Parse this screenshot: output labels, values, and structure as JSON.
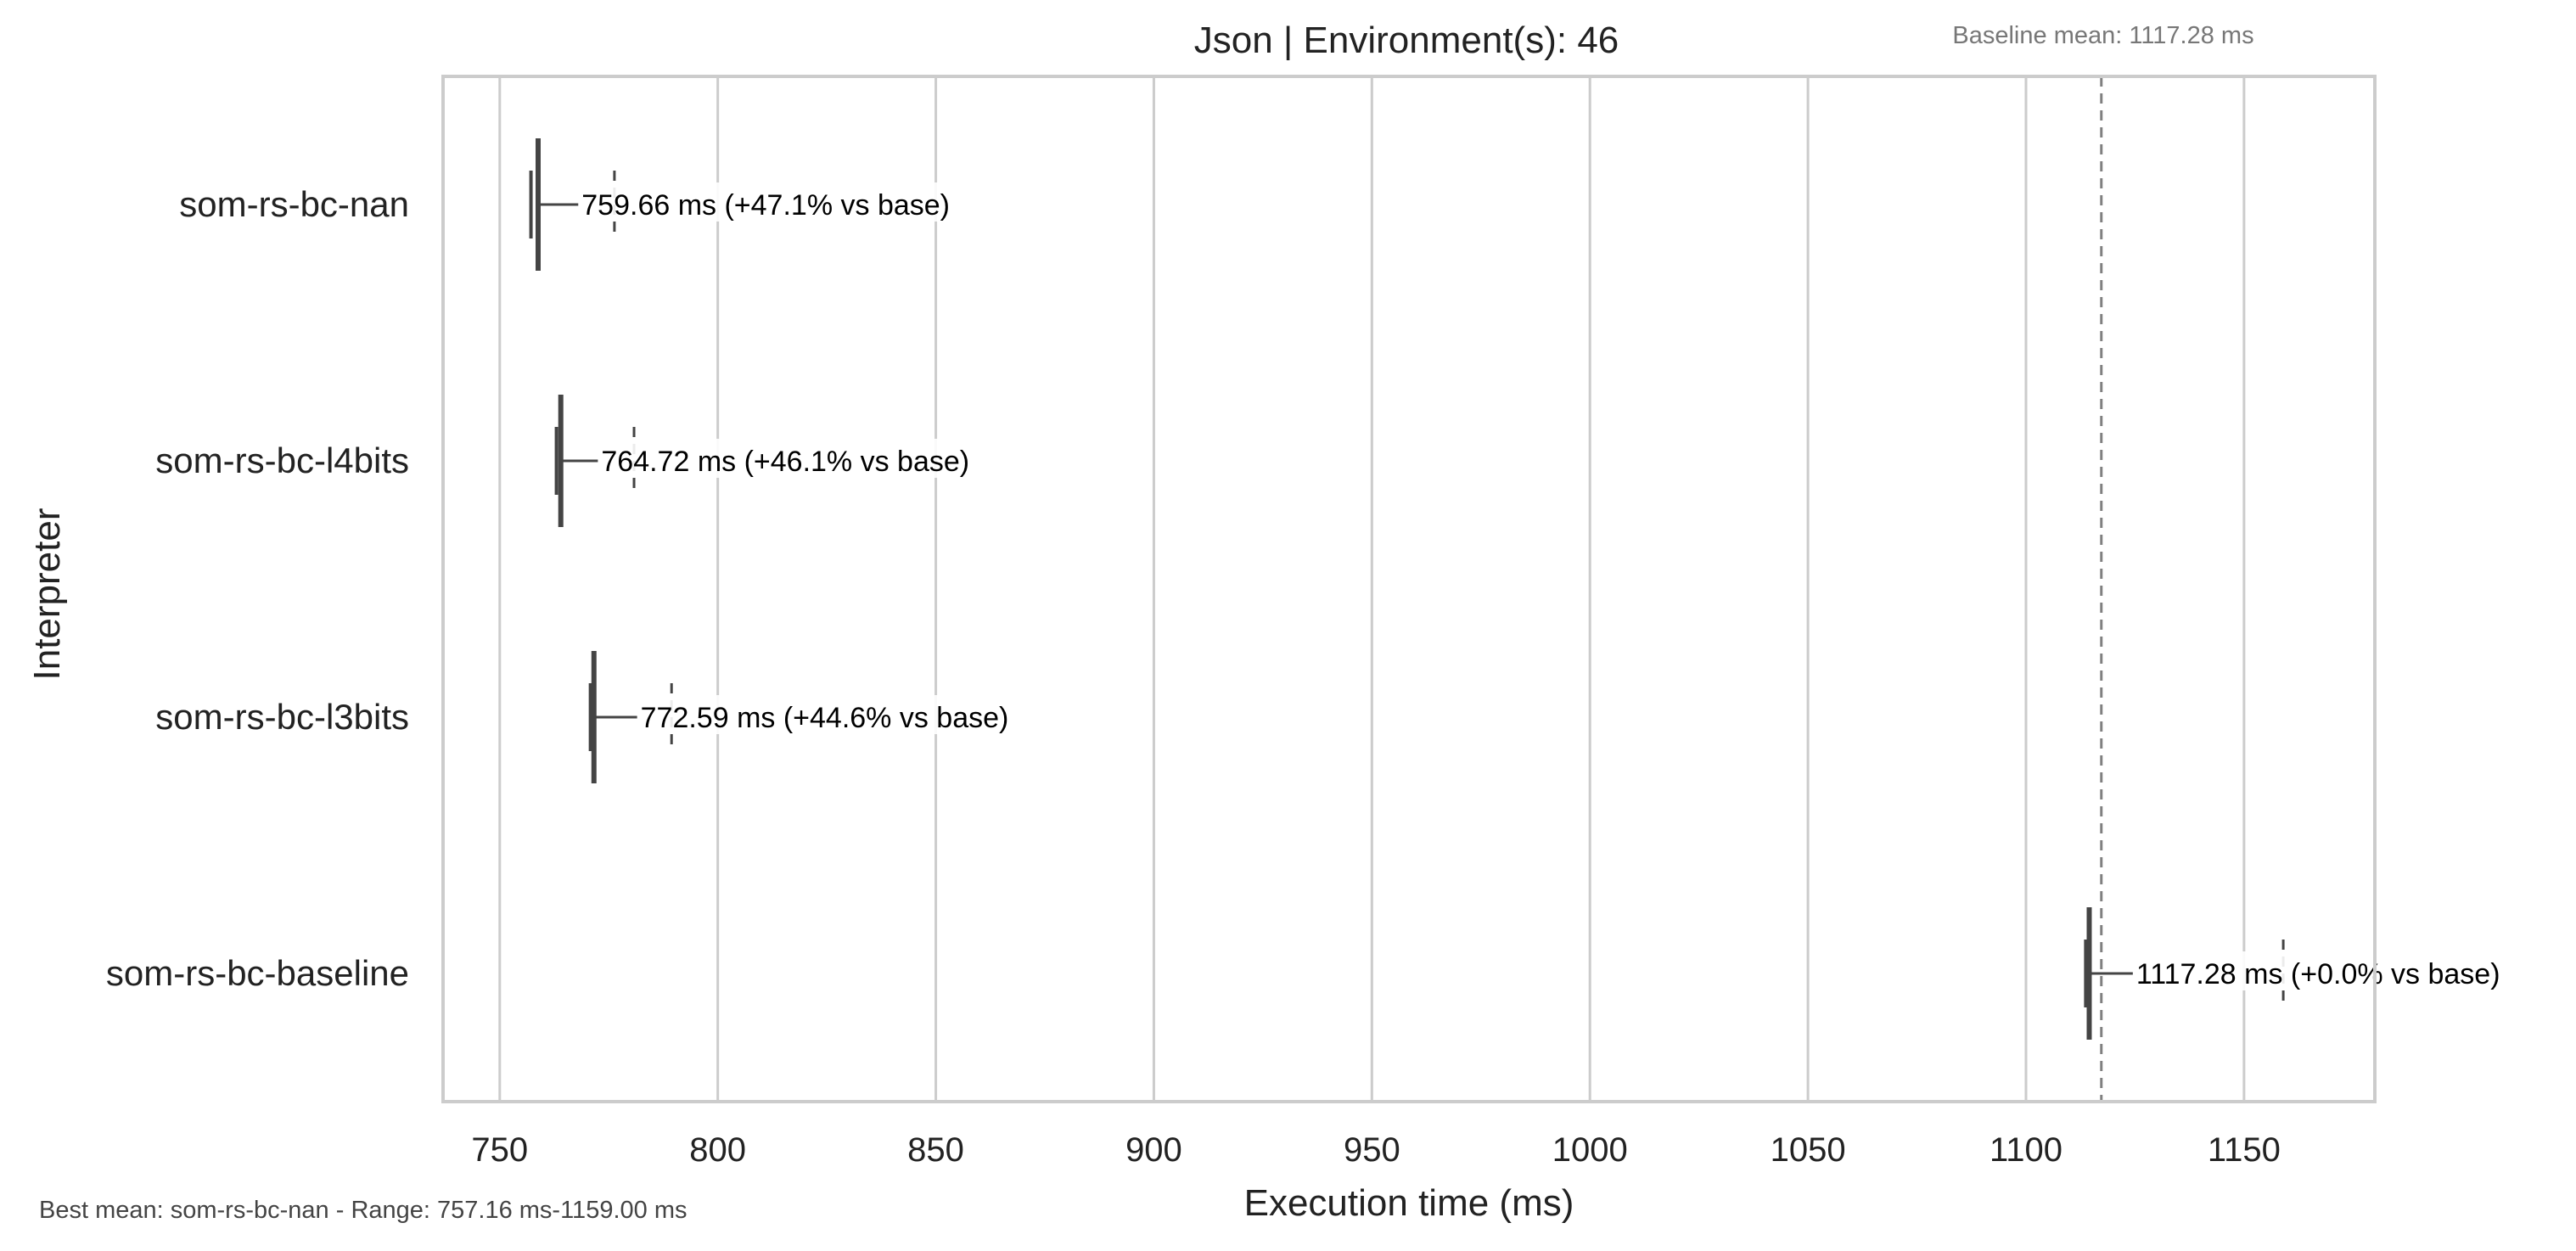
{
  "chart_data": {
    "type": "box",
    "orientation": "horizontal",
    "title": "Json | Environment(s): 46",
    "xlabel": "Execution time (ms)",
    "ylabel": "Interpreter",
    "xlim": [
      737,
      1180
    ],
    "xticks": [
      750,
      800,
      850,
      900,
      950,
      1000,
      1050,
      1100,
      1150
    ],
    "grid": "vertical",
    "baseline": {
      "label": "Baseline mean: 1117.28 ms",
      "value": 1117.28,
      "style": "dashed"
    },
    "footer": "Best mean: som-rs-bc-nan - Range: 757.16 ms-1159.00 ms",
    "series": [
      {
        "name": "som-rs-bc-nan",
        "min": 757.16,
        "q1": 758.5,
        "median": 758.8,
        "q3": 759.3,
        "max": 776.3,
        "whisker_hi": 768.0,
        "label": "759.66 ms  (+47.1% vs base)"
      },
      {
        "name": "som-rs-bc-l4bits",
        "min": 763.0,
        "q1": 763.5,
        "median": 764.0,
        "q3": 764.4,
        "max": 780.8,
        "whisker_hi": 772.5,
        "label": "764.72 ms  (+46.1% vs base)"
      },
      {
        "name": "som-rs-bc-l3bits",
        "min": 770.8,
        "q1": 771.2,
        "median": 771.6,
        "q3": 772.1,
        "max": 789.4,
        "whisker_hi": 781.5,
        "label": "772.59 ms  (+44.6% vs base)"
      },
      {
        "name": "som-rs-bc-baseline",
        "min": 1113.7,
        "q1": 1114.2,
        "median": 1114.5,
        "q3": 1115.0,
        "max": 1159.0,
        "whisker_hi": 1124.5,
        "label": "1117.28 ms  (+0.0% vs base)"
      }
    ],
    "colors": {
      "box": "#444444",
      "grid": "#cccccc",
      "axes": "#cccccc",
      "baseline_line": "#808080",
      "label_bg": "#ffffff",
      "text": "#222222",
      "muted": "#777777"
    }
  }
}
